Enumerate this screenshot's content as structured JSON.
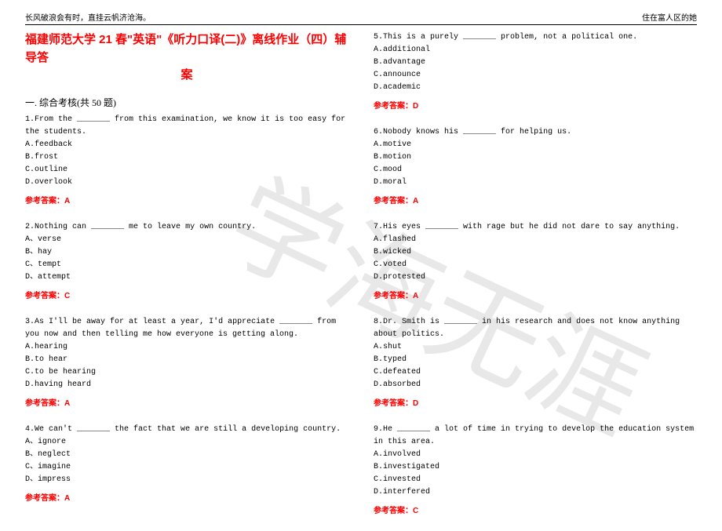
{
  "header": {
    "left": "长风破浪会有时，直挂云帆济沧海。",
    "right": "住在富人区的她"
  },
  "watermark": "学海无涯",
  "title_line1": "福建师范大学 21 春\"英语\"《听力口译(二)》离线作业（四）辅导答",
  "title_line2": "案",
  "section": "一. 综合考核(共 50 题)",
  "questions_left": [
    {
      "num": "1",
      "text": "From the _______ from this examination, we know it is too easy for the students.",
      "options": [
        "A.feedback",
        "B.frost",
        "C.outline",
        "D.overlook"
      ],
      "answer": "参考答案：A"
    },
    {
      "num": "2",
      "text": "Nothing can _______ me to leave my own country.",
      "options": [
        "A、verse",
        "B、hay",
        "C、tempt",
        "D、attempt"
      ],
      "answer": "参考答案：C"
    },
    {
      "num": "3",
      "text": "As I'll be away for at least a year, I'd appreciate _______ from you now and then telling me how everyone is getting along.",
      "options": [
        "A.hearing",
        "B.to hear",
        "C.to be hearing",
        "D.having heard"
      ],
      "answer": "参考答案：A"
    },
    {
      "num": "4",
      "text": "We can't _______ the fact that we are still a developing country.",
      "options": [
        "A、ignore",
        "B、neglect",
        "C、imagine",
        "D、impress"
      ],
      "answer": "参考答案：A"
    }
  ],
  "questions_right": [
    {
      "num": "5",
      "text": "This is a purely _______ problem, not a political one.",
      "options": [
        "A.additional",
        "B.advantage",
        "C.announce",
        "D.academic"
      ],
      "answer": "参考答案：D"
    },
    {
      "num": "6",
      "text": "Nobody knows his _______ for helping us.",
      "options": [
        "A.motive",
        "B.motion",
        "C.mood",
        "D.moral"
      ],
      "answer": "参考答案：A"
    },
    {
      "num": "7",
      "text": "His eyes _______ with rage but he did not dare to say anything.",
      "options": [
        "A.flashed",
        "B.wicked",
        "C.voted",
        "D.protested"
      ],
      "answer": "参考答案：A"
    },
    {
      "num": "8",
      "text": "Dr. Smith is _______ in his research and does not know anything about politics.",
      "options": [
        "A.shut",
        "B.typed",
        "C.defeated",
        "D.absorbed"
      ],
      "answer": "参考答案：D"
    },
    {
      "num": "9",
      "text": "He _______ a lot of time in trying to develop the education system in this area.",
      "options": [
        "A.involved",
        "B.investigated",
        "C.invested",
        "D.interfered"
      ],
      "answer": "参考答案：C"
    }
  ]
}
